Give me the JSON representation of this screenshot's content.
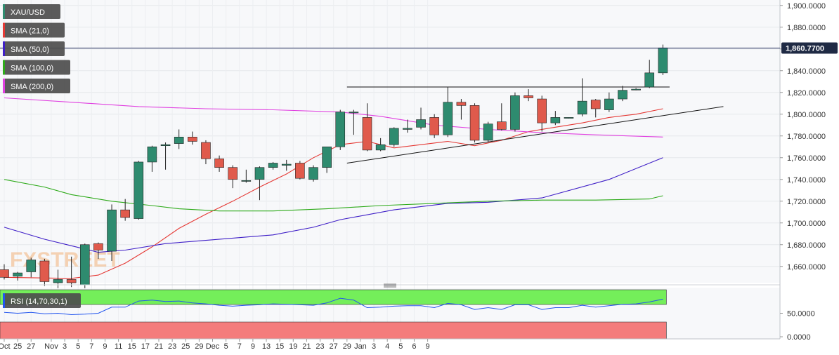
{
  "chart_data": [
    {
      "type": "candlestick",
      "title": "XAU/USD",
      "ylim": [
        1645,
        1905
      ],
      "y_ticks": [
        "1,900.0000",
        "1,880.0000",
        "1,860.0000",
        "1,840.0000",
        "1,820.0000",
        "1,800.0000",
        "1,780.0000",
        "1,760.0000",
        "1,740.0000",
        "1,720.0000",
        "1,700.0000",
        "1,680.0000",
        "1,660.0000"
      ],
      "y_tick_values": [
        1900,
        1880,
        1860,
        1840,
        1820,
        1800,
        1780,
        1760,
        1740,
        1720,
        1700,
        1680,
        1660
      ],
      "x_ticks": [
        "Oct",
        "25",
        "27",
        "Nov",
        "3",
        "5",
        "7",
        "9",
        "11",
        "15",
        "17",
        "21",
        "23",
        "25",
        "29",
        "Dec",
        "5",
        "7",
        "9",
        "13",
        "15",
        "19",
        "21",
        "23",
        "27",
        "29",
        "Jan",
        "3",
        "4",
        "5",
        "6",
        "9"
      ],
      "x_tick_index": [
        0,
        1,
        2,
        3.5,
        4.5,
        5.5,
        6.5,
        7.5,
        8.5,
        9.5,
        10.5,
        11.5,
        12.5,
        13.5,
        14.5,
        15.5,
        16.5,
        17.5,
        18.5,
        19.5,
        20.5,
        21.5,
        22.5,
        23.5,
        24.5,
        25.5,
        26.5,
        27.5,
        28.5,
        29.5,
        30.5,
        31.5
      ],
      "last_price": "1,860.7700",
      "last_price_value": 1860.77,
      "candles": [
        {
          "o": 1657,
          "h": 1662,
          "l": 1648,
          "c": 1650
        },
        {
          "o": 1651,
          "h": 1655,
          "l": 1647,
          "c": 1654
        },
        {
          "o": 1655,
          "h": 1668,
          "l": 1650,
          "c": 1666
        },
        {
          "o": 1665,
          "h": 1667,
          "l": 1642,
          "c": 1646
        },
        {
          "o": 1645,
          "h": 1657,
          "l": 1640,
          "c": 1648
        },
        {
          "o": 1648,
          "h": 1669,
          "l": 1641,
          "c": 1645
        },
        {
          "o": 1643,
          "h": 1681,
          "l": 1640,
          "c": 1680
        },
        {
          "o": 1681,
          "h": 1682,
          "l": 1667,
          "c": 1675
        },
        {
          "o": 1674,
          "h": 1717,
          "l": 1665,
          "c": 1712
        },
        {
          "o": 1712,
          "h": 1722,
          "l": 1702,
          "c": 1705
        },
        {
          "o": 1704,
          "h": 1757,
          "l": 1703,
          "c": 1756
        },
        {
          "o": 1756,
          "h": 1771,
          "l": 1747,
          "c": 1770
        },
        {
          "o": 1771,
          "h": 1774,
          "l": 1749,
          "c": 1772
        },
        {
          "o": 1773,
          "h": 1786,
          "l": 1768,
          "c": 1779
        },
        {
          "o": 1779,
          "h": 1784,
          "l": 1772,
          "c": 1775
        },
        {
          "o": 1774,
          "h": 1776,
          "l": 1754,
          "c": 1759
        },
        {
          "o": 1759,
          "h": 1762,
          "l": 1747,
          "c": 1751
        },
        {
          "o": 1751,
          "h": 1753,
          "l": 1732,
          "c": 1740
        },
        {
          "o": 1739,
          "h": 1749,
          "l": 1737,
          "c": 1739
        },
        {
          "o": 1740,
          "h": 1752,
          "l": 1721,
          "c": 1751
        },
        {
          "o": 1751,
          "h": 1756,
          "l": 1749,
          "c": 1755
        },
        {
          "o": 1753,
          "h": 1758,
          "l": 1748,
          "c": 1754
        },
        {
          "o": 1755,
          "h": 1757,
          "l": 1740,
          "c": 1741
        },
        {
          "o": 1740,
          "h": 1753,
          "l": 1738,
          "c": 1751
        },
        {
          "o": 1751,
          "h": 1770,
          "l": 1746,
          "c": 1770
        },
        {
          "o": 1770,
          "h": 1804,
          "l": 1767,
          "c": 1802
        },
        {
          "o": 1802,
          "h": 1804,
          "l": 1781,
          "c": 1802
        },
        {
          "o": 1797,
          "h": 1810,
          "l": 1766,
          "c": 1767
        },
        {
          "o": 1767,
          "h": 1778,
          "l": 1766,
          "c": 1772
        },
        {
          "o": 1772,
          "h": 1788,
          "l": 1770,
          "c": 1787
        },
        {
          "o": 1786,
          "h": 1795,
          "l": 1783,
          "c": 1787
        },
        {
          "o": 1788,
          "h": 1806,
          "l": 1786,
          "c": 1795
        },
        {
          "o": 1797,
          "h": 1800,
          "l": 1778,
          "c": 1781
        },
        {
          "o": 1781,
          "h": 1825,
          "l": 1779,
          "c": 1811
        },
        {
          "o": 1811,
          "h": 1814,
          "l": 1795,
          "c": 1808
        },
        {
          "o": 1808,
          "h": 1810,
          "l": 1774,
          "c": 1776
        },
        {
          "o": 1776,
          "h": 1793,
          "l": 1774,
          "c": 1791
        },
        {
          "o": 1793,
          "h": 1810,
          "l": 1785,
          "c": 1786
        },
        {
          "o": 1786,
          "h": 1820,
          "l": 1784,
          "c": 1817
        },
        {
          "o": 1817,
          "h": 1823,
          "l": 1812,
          "c": 1815
        },
        {
          "o": 1814,
          "h": 1817,
          "l": 1784,
          "c": 1792
        },
        {
          "o": 1792,
          "h": 1803,
          "l": 1790,
          "c": 1797
        },
        {
          "o": 1797,
          "h": 1797,
          "l": 1796,
          "c": 1797
        },
        {
          "o": 1800,
          "h": 1833,
          "l": 1798,
          "c": 1812
        },
        {
          "o": 1813,
          "h": 1814,
          "l": 1797,
          "c": 1805
        },
        {
          "o": 1804,
          "h": 1820,
          "l": 1802,
          "c": 1814
        },
        {
          "o": 1814,
          "h": 1826,
          "l": 1812,
          "c": 1822
        },
        {
          "o": 1823,
          "h": 1824,
          "l": 1822,
          "c": 1823
        },
        {
          "o": 1825,
          "h": 1850,
          "l": 1824,
          "c": 1838
        },
        {
          "o": 1838,
          "h": 1864,
          "l": 1836,
          "c": 1861
        }
      ],
      "series": [
        {
          "name": "SMA (21,0)",
          "color": "#e53935",
          "points": [
            [
              0,
              1650
            ],
            [
              5,
              1649
            ],
            [
              7,
              1652
            ],
            [
              9,
              1663
            ],
            [
              11,
              1678
            ],
            [
              13,
              1695
            ],
            [
              15,
              1708
            ],
            [
              17,
              1720
            ],
            [
              19,
              1733
            ],
            [
              21,
              1745
            ],
            [
              23,
              1760
            ],
            [
              25,
              1772
            ],
            [
              27,
              1775
            ],
            [
              29,
              1769
            ],
            [
              31,
              1772
            ],
            [
              33,
              1775
            ],
            [
              35,
              1771
            ],
            [
              37,
              1776
            ],
            [
              39,
              1784
            ],
            [
              41,
              1788
            ],
            [
              43,
              1792
            ],
            [
              45,
              1797
            ],
            [
              47,
              1800
            ],
            [
              49,
              1805
            ]
          ]
        },
        {
          "name": "SMA (50,0)",
          "color": "#3f1fc7",
          "points": [
            [
              0,
              1696
            ],
            [
              3,
              1685
            ],
            [
              5,
              1679
            ],
            [
              7,
              1673
            ],
            [
              9,
              1675
            ],
            [
              12,
              1681
            ],
            [
              15,
              1684
            ],
            [
              20,
              1689
            ],
            [
              23,
              1696
            ],
            [
              25,
              1703
            ],
            [
              29,
              1712
            ],
            [
              33,
              1718
            ],
            [
              36,
              1719
            ],
            [
              40,
              1723
            ],
            [
              45,
              1740
            ],
            [
              49,
              1760
            ]
          ]
        },
        {
          "name": "SMA (100,0)",
          "color": "#2eaa1a",
          "points": [
            [
              0,
              1740
            ],
            [
              3,
              1733
            ],
            [
              5,
              1726
            ],
            [
              8,
              1720
            ],
            [
              11,
              1716
            ],
            [
              13,
              1713
            ],
            [
              16,
              1711
            ],
            [
              20,
              1711
            ],
            [
              24,
              1713
            ],
            [
              28,
              1716
            ],
            [
              32,
              1718
            ],
            [
              36,
              1720
            ],
            [
              40,
              1721
            ],
            [
              44,
              1721
            ],
            [
              48,
              1722
            ],
            [
              49,
              1725
            ]
          ]
        },
        {
          "name": "SMA (200,0)",
          "color": "#e040e0",
          "points": [
            [
              0,
              1815
            ],
            [
              5,
              1811
            ],
            [
              10,
              1807
            ],
            [
              15,
              1805
            ],
            [
              20,
              1804
            ],
            [
              25,
              1802
            ],
            [
              28,
              1798
            ],
            [
              32,
              1790
            ],
            [
              36,
              1786
            ],
            [
              40,
              1783
            ],
            [
              44,
              1781
            ],
            [
              49,
              1779
            ]
          ]
        }
      ],
      "legend": [
        "XAU/USD",
        "SMA (21,0)",
        "SMA (50,0)",
        "SMA (100,0)",
        "SMA (200,0)"
      ],
      "legend_placement": "top-left",
      "watermark": "FXSTREET",
      "annotations": {
        "resistance": {
          "x": [
            25.5,
            49.5
          ],
          "y": 1825
        },
        "trendline": {
          "x0": 25.5,
          "y0": 1755,
          "x1": 53.5,
          "y1": 1807
        }
      }
    },
    {
      "type": "line",
      "title": "RSI (14,70,30,1)",
      "ylim": [
        0,
        100
      ],
      "y_ticks": [
        "50.0000",
        "0.0000"
      ],
      "y_tick_values": [
        50,
        0
      ],
      "overbought_color": "#74ee5a",
      "oversold_color": "#f47c7c",
      "series": [
        {
          "name": "RSI",
          "color": "#2255ee",
          "values": [
            52,
            50,
            52,
            49,
            50,
            47,
            48,
            50,
            63,
            63,
            76,
            78,
            75,
            76,
            72,
            70,
            67,
            65,
            67,
            68,
            70,
            69,
            68,
            67,
            72,
            82,
            78,
            62,
            63,
            65,
            66,
            66,
            62,
            71,
            68,
            58,
            62,
            58,
            68,
            68,
            58,
            62,
            62,
            67,
            63,
            66,
            69,
            70,
            74,
            80
          ]
        }
      ]
    }
  ]
}
